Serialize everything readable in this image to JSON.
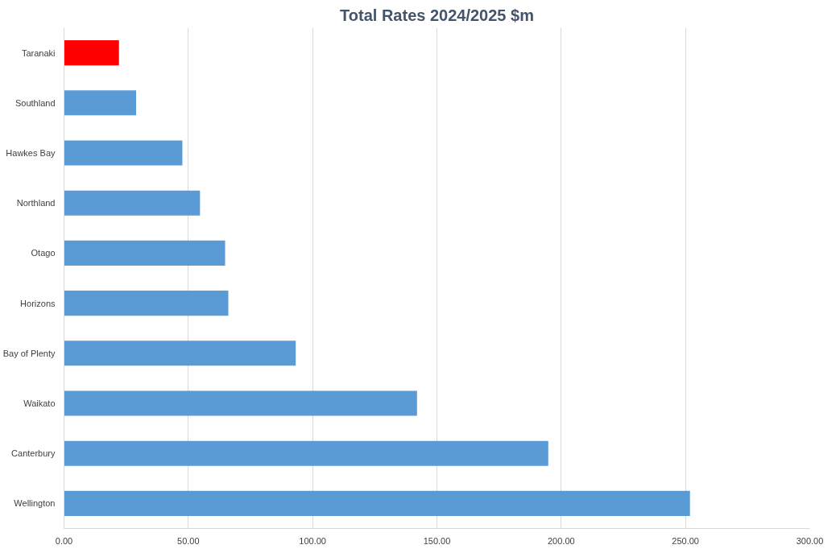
{
  "chart_data": {
    "type": "bar",
    "orientation": "horizontal",
    "title": "Total Rates 2024/2025 $m",
    "categories": [
      "Taranaki",
      "Southland",
      "Hawkes Bay",
      "Northland",
      "Otago",
      "Horizons",
      "Bay of Plenty",
      "Waikato",
      "Canterbury",
      "Wellington"
    ],
    "values": [
      22.1,
      29,
      47.6,
      54.7,
      64.8,
      66.1,
      93.2,
      142,
      194.8,
      251.8
    ],
    "colors": [
      "#ff0000",
      "#5b9bd5",
      "#5b9bd5",
      "#5b9bd5",
      "#5b9bd5",
      "#5b9bd5",
      "#5b9bd5",
      "#5b9bd5",
      "#5b9bd5",
      "#5b9bd5"
    ],
    "xlim": [
      0,
      300
    ],
    "xticks": [
      {
        "value": 0,
        "label": "0.00"
      },
      {
        "value": 50,
        "label": "50.00"
      },
      {
        "value": 100,
        "label": "100.00"
      },
      {
        "value": 150,
        "label": "150.00"
      },
      {
        "value": 200,
        "label": "200.00"
      },
      {
        "value": 250,
        "label": "250.00"
      },
      {
        "value": 300,
        "label": "300.00"
      }
    ],
    "grid": "x"
  }
}
